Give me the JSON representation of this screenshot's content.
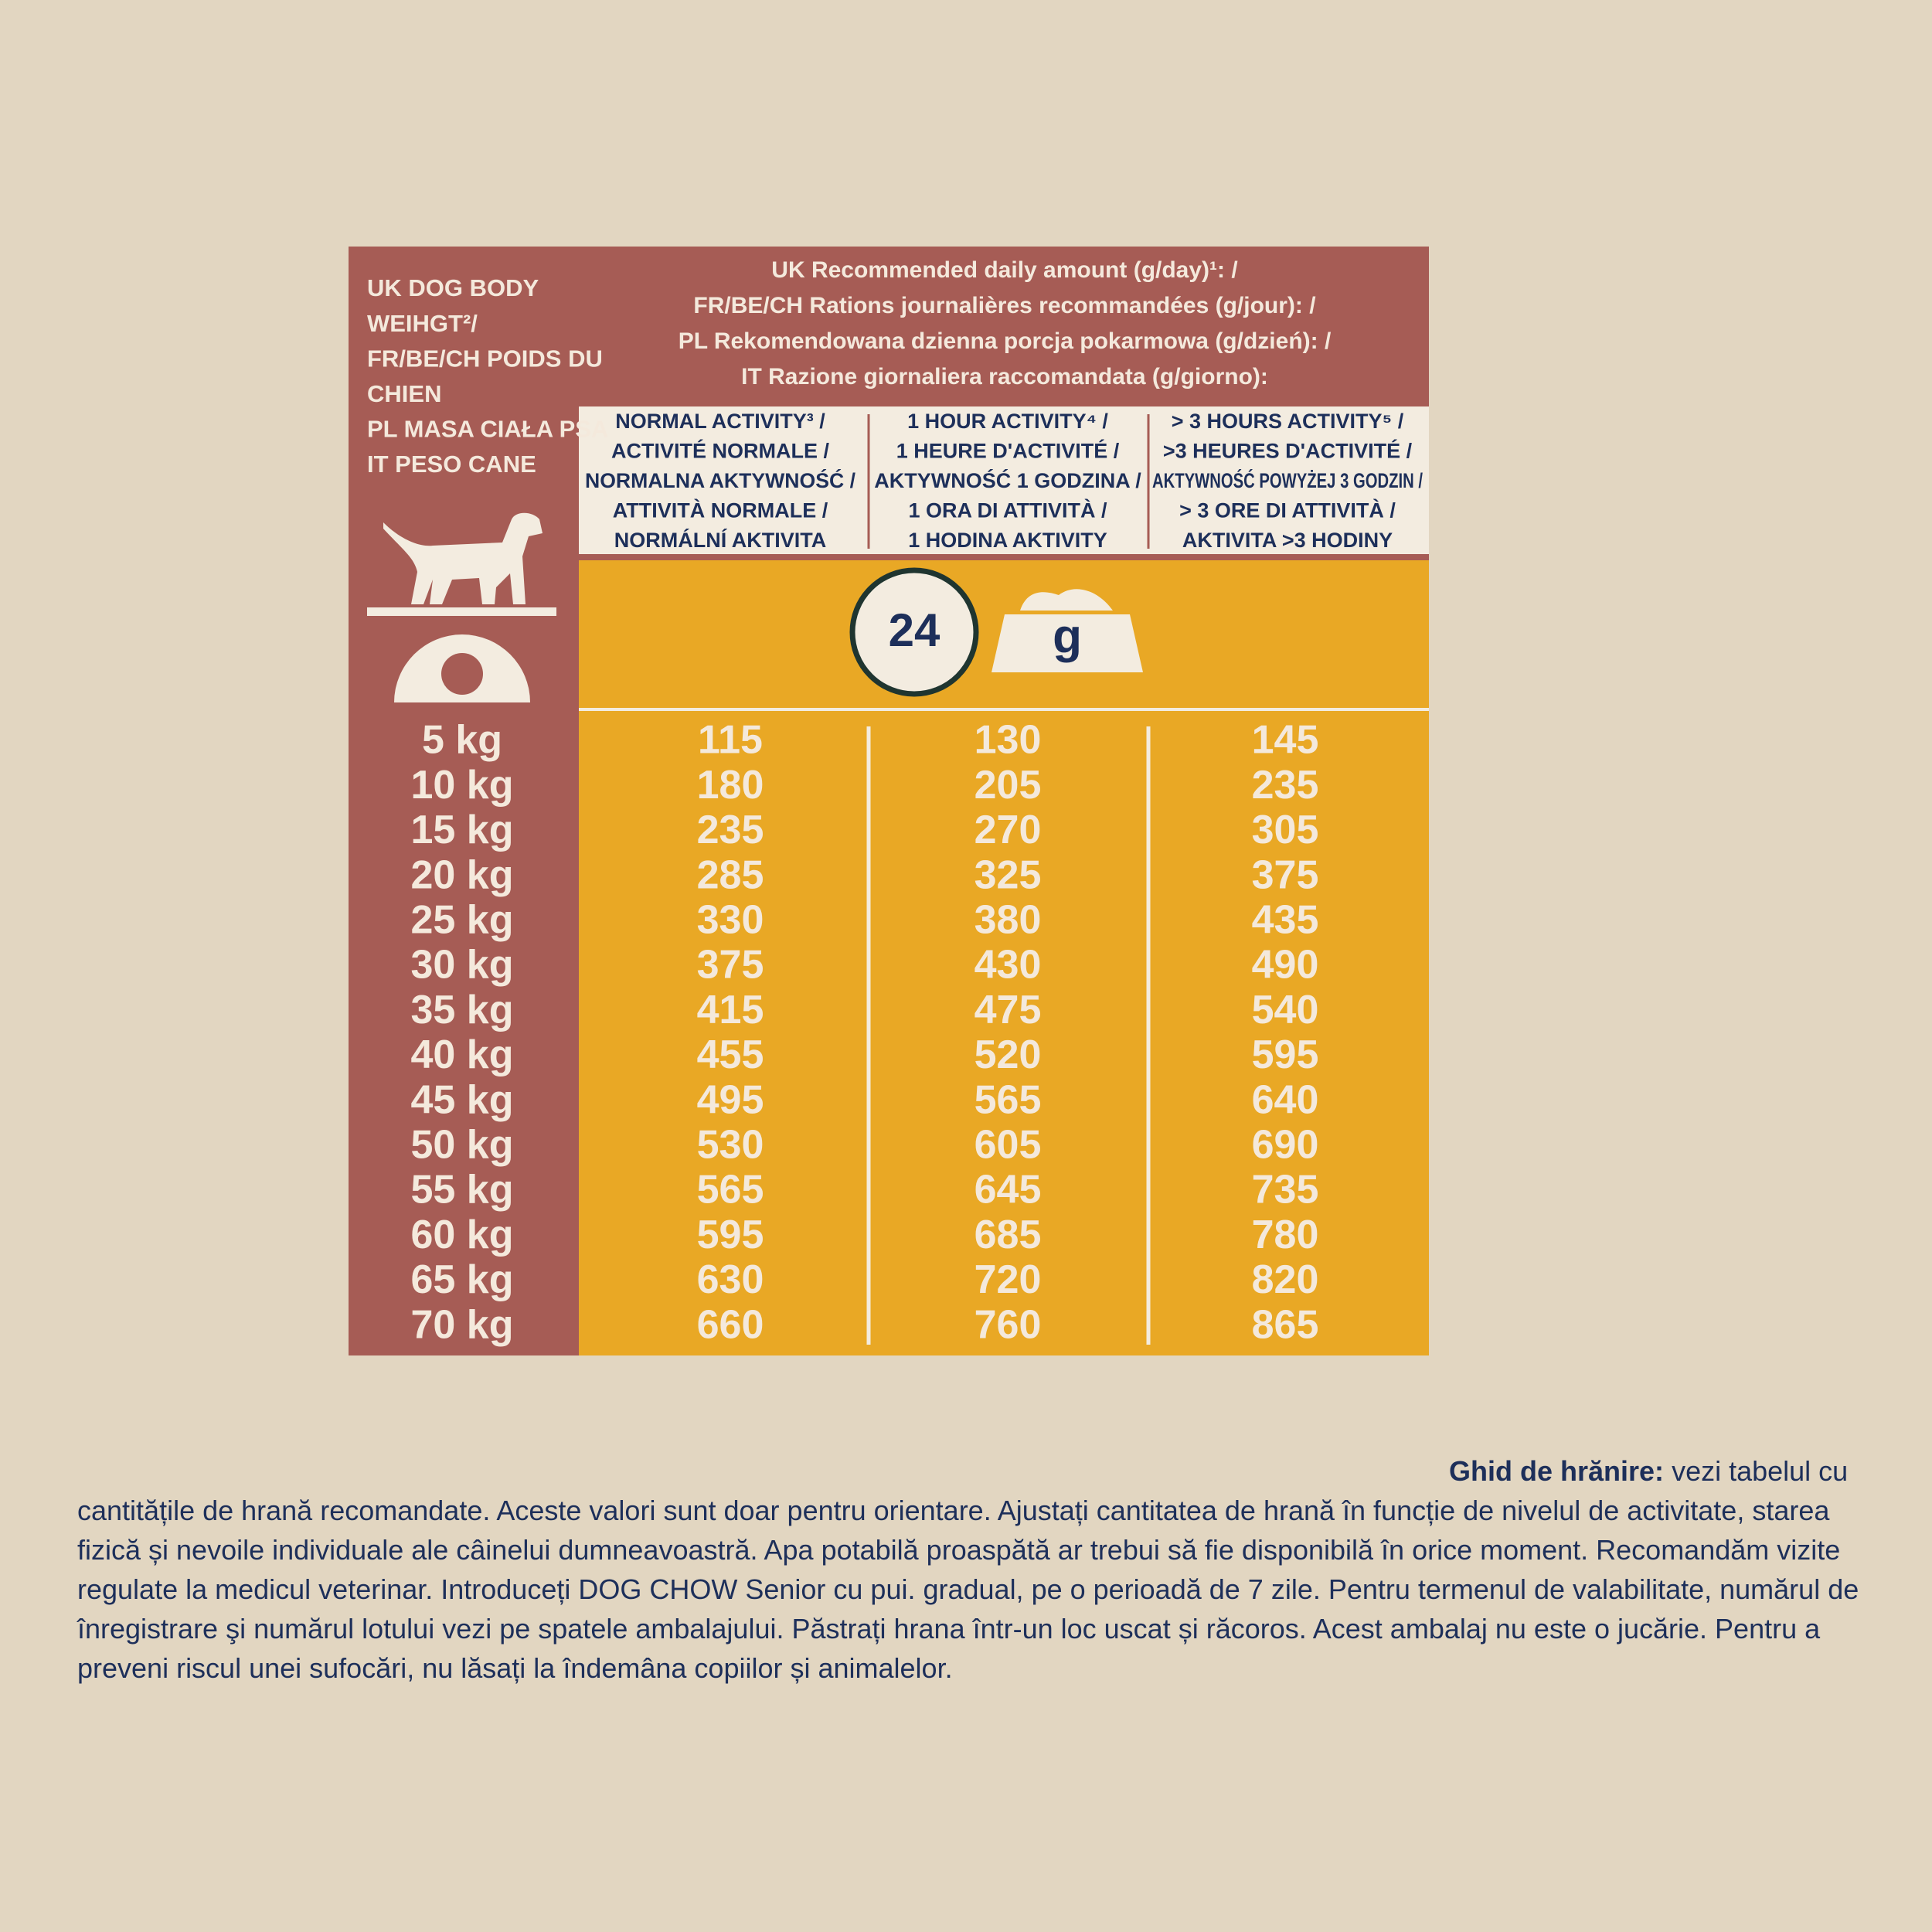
{
  "header": {
    "weight_label": [
      "UK DOG BODY",
      "WEIHGT²/",
      "FR/BE/CH POIDS DU",
      "CHIEN",
      "PL MASA CIAŁA PSA",
      "IT PESO CANE"
    ],
    "amount_label": [
      "UK Recommended daily amount (g/day)¹: /",
      "FR/BE/CH Rations journalières recommandées (g/jour): /",
      "PL Rekomendowana dzienna porcja pokarmowa (g/dzień): /",
      "IT Razione giornaliera raccomandata (g/giorno):"
    ]
  },
  "columns": [
    [
      "NORMAL ACTIVITY³ /",
      "ACTIVITÉ NORMALE /",
      "NORMALNA AKTYWNOŚĆ /",
      "ATTIVITÀ NORMALE /",
      "NORMÁLNÍ AKTIVITA"
    ],
    [
      "1 HOUR ACTIVITY⁴ /",
      "1 HEURE D'ACTIVITÉ /",
      "AKTYWNOŚĆ 1 GODZINA /",
      "1 ORA DI ATTIVITÀ /",
      "1 HODINA AKTIVITY"
    ],
    [
      "> 3 HOURS ACTIVITY⁵ /",
      ">3 HEURES D'ACTIVITÉ /",
      "AKTYWNOŚĆ POWYŻEJ 3 GODZIN /",
      "> 3 ORE DI ATTIVITÀ /",
      "AKTIVITA >3 HODINY"
    ]
  ],
  "icons": {
    "clock": "24",
    "bowl": "g"
  },
  "table": {
    "rows": [
      [
        "5 kg",
        "115",
        "130",
        "145"
      ],
      [
        "10 kg",
        "180",
        "205",
        "235"
      ],
      [
        "15 kg",
        "235",
        "270",
        "305"
      ],
      [
        "20 kg",
        "285",
        "325",
        "375"
      ],
      [
        "25 kg",
        "330",
        "380",
        "435"
      ],
      [
        "30 kg",
        "375",
        "430",
        "490"
      ],
      [
        "35 kg",
        "415",
        "475",
        "540"
      ],
      [
        "40 kg",
        "455",
        "520",
        "595"
      ],
      [
        "45 kg",
        "495",
        "565",
        "640"
      ],
      [
        "50 kg",
        "530",
        "605",
        "690"
      ],
      [
        "55 kg",
        "565",
        "645",
        "735"
      ],
      [
        "60 kg",
        "595",
        "685",
        "780"
      ],
      [
        "65 kg",
        "630",
        "720",
        "820"
      ],
      [
        "70 kg",
        "660",
        "760",
        "865"
      ]
    ]
  },
  "footer": {
    "title": "Ghid de hrănire:",
    "text": "vezi tabelul cu cantitățile de hrană recomandate. Aceste valori sunt doar pentru orientare. Ajustați cantitatea de hrană în funcție de nivelul de activitate, starea fizică și nevoile individuale ale câinelui dumneavoastră. Apa potabilă proaspătă ar trebui să fie disponibilă în orice moment. Recomandăm vizite regulate la medicul veterinar. Introduceți DOG CHOW Senior cu pui. gradual, pe o perioadă de 7 zile. Pentru termenul de valabilitate, numărul de înregistrare şi numărul lotului vezi pe spatele ambalajului. Păstrați hrana într-un loc uscat și răcoros. Acest ambalaj nu este o jucărie. Pentru a preveni riscul unei sufocări, nu lăsați la îndemâna copiilor și animalelor."
  }
}
